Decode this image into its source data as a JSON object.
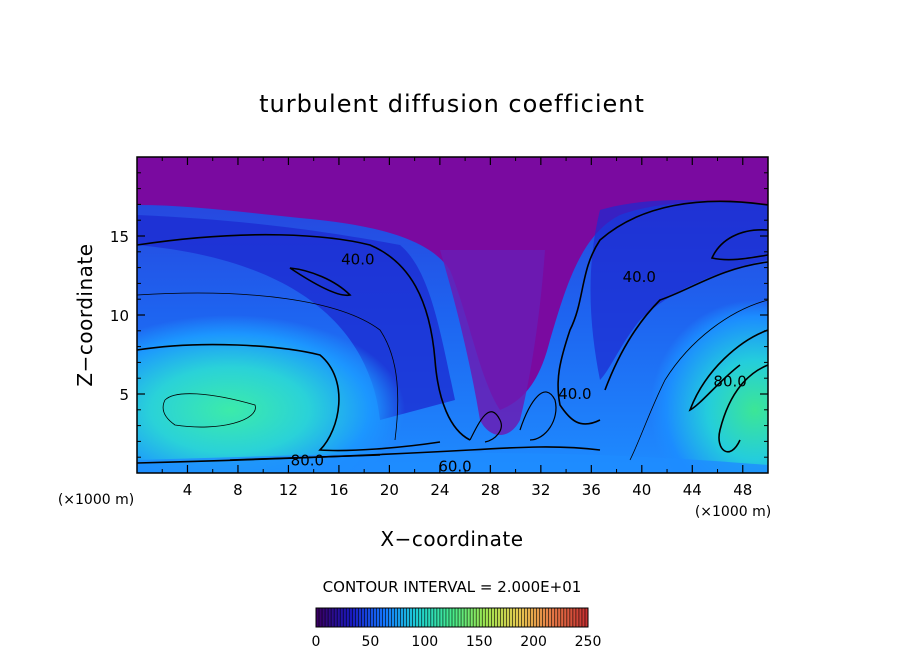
{
  "chart_data": {
    "type": "heatmap",
    "title": "turbulent diffusion coefficient",
    "xlabel": "X−coordinate",
    "ylabel": "Z−coordinate",
    "x_unit_label": "(×1000 m)",
    "z_unit_label": "(×1000 m)",
    "xlim": [
      0,
      50
    ],
    "ylim": [
      0,
      20
    ],
    "x_ticks": [
      4,
      8,
      12,
      16,
      20,
      24,
      28,
      32,
      36,
      40,
      44,
      48
    ],
    "y_ticks": [
      5,
      10,
      15
    ],
    "contour_interval_text": "CONTOUR INTERVAL = 2.000E+01",
    "contour_interval": 20,
    "contour_labels": [
      {
        "text": "40.0",
        "x": 17.5,
        "z": 13.5
      },
      {
        "text": "40.0",
        "x": 39.8,
        "z": 12.4
      },
      {
        "text": "40.0",
        "x": 34.7,
        "z": 5.0
      },
      {
        "text": "80.0",
        "x": 13.5,
        "z": 0.8
      },
      {
        "text": "60.0",
        "x": 25.2,
        "z": 0.4
      },
      {
        "text": "80.0",
        "x": 47.0,
        "z": 5.8
      }
    ],
    "colorbar": {
      "min": 0,
      "max": 250,
      "tick_labels": [
        "0",
        "50",
        "100",
        "150",
        "200",
        "250"
      ],
      "colors": [
        "#3a0066",
        "#1a1ac0",
        "#1478ff",
        "#1ed2d2",
        "#46eb8c",
        "#a0e650",
        "#e6c850",
        "#e67846",
        "#c83232"
      ]
    },
    "field_colors": {
      "top_layer": "#7a0aa0",
      "low": "#1428d0",
      "mid": "#14a0ff",
      "high": "#3ce696"
    }
  }
}
